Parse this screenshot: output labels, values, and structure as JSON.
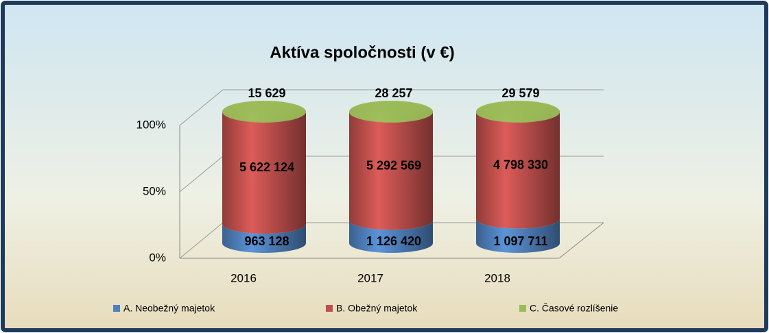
{
  "chart_data": {
    "type": "stacked_bar_100",
    "title": "Aktíva spoločnosti (v €)",
    "categories": [
      "2016",
      "2017",
      "2018"
    ],
    "series": [
      {
        "name": "A. Neobežný majetok",
        "color": "#4f81bd",
        "values": [
          963128,
          1126420,
          1097711
        ],
        "value_labels": [
          "963 128",
          "1 126 420",
          "1 097 711"
        ]
      },
      {
        "name": "B. Obežný majetok",
        "color": "#c0504d",
        "values": [
          5622124,
          5292569,
          4798330
        ],
        "value_labels": [
          "5 622 124",
          "5 292 569",
          "4 798 330"
        ]
      },
      {
        "name": "C. Časové rozlíšenie",
        "color": "#9bbb59",
        "values": [
          15629,
          28257,
          29579
        ],
        "value_labels": [
          "15 629",
          "28 257",
          "29 579"
        ]
      }
    ],
    "ylim": [
      0,
      100
    ],
    "yticks": [
      {
        "value": 0,
        "label": "0%"
      },
      {
        "value": 50,
        "label": "50%"
      },
      {
        "value": 100,
        "label": "100%"
      }
    ],
    "grid": true,
    "legend": "bottom"
  }
}
